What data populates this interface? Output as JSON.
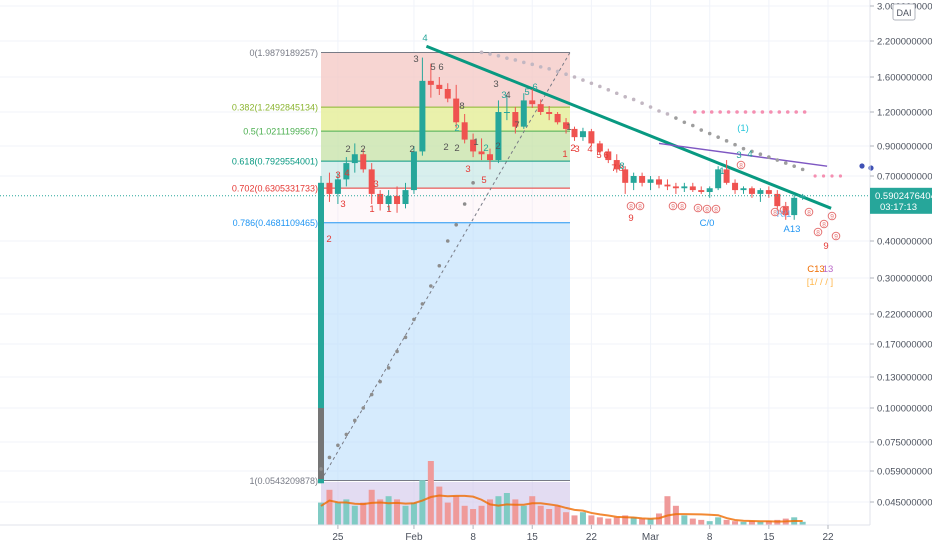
{
  "chart_data": {
    "type": "candlestick",
    "y_scale": "log",
    "currency_badge": "DAI",
    "current_price": "0.5902476404",
    "countdown": "03:17:13",
    "y_ticks": [
      {
        "label": "3.0000000000",
        "value": 3.0
      },
      {
        "label": "2.2000000000",
        "value": 2.2
      },
      {
        "label": "1.6000000000",
        "value": 1.6
      },
      {
        "label": "1.2000000000",
        "value": 1.2
      },
      {
        "label": "0.9000000000",
        "value": 0.9
      },
      {
        "label": "0.7000000000",
        "value": 0.7
      },
      {
        "label": "0.4000000000",
        "value": 0.4
      },
      {
        "label": "0.3000000000",
        "value": 0.3
      },
      {
        "label": "0.2200000000",
        "value": 0.22
      },
      {
        "label": "0.1700000000",
        "value": 0.17
      },
      {
        "label": "0.1300000000",
        "value": 0.13
      },
      {
        "label": "0.1000000000",
        "value": 0.1
      },
      {
        "label": "0.0750000000",
        "value": 0.075
      },
      {
        "label": "0.0590000000",
        "value": 0.059
      },
      {
        "label": "0.0450000000",
        "value": 0.045
      }
    ],
    "x_ticks": [
      "25",
      "Feb",
      "8",
      "15",
      "22",
      "Mar",
      "8",
      "15",
      "22"
    ],
    "fib_levels": [
      {
        "label": "0(1.9879189257)",
        "value": 1.9879189257,
        "color": "#787b86"
      },
      {
        "label": "0.382(1.2492845134)",
        "value": 1.2492845134,
        "color": "#8bb531"
      },
      {
        "label": "0.5(1.0211199567)",
        "value": 1.0211199567,
        "color": "#4caf50"
      },
      {
        "label": "0.618(0.7929554001)",
        "value": 0.7929554001,
        "color": "#089981"
      },
      {
        "label": "0.702(0.6305331733)",
        "value": 0.6305331733,
        "color": "#e53935"
      },
      {
        "label": "0.786(0.4681109465)",
        "value": 0.4681109465,
        "color": "#2196f3"
      },
      {
        "label": "1(0.0543209878)",
        "value": 0.0543209878,
        "color": "#787b86"
      }
    ],
    "td_labels": [
      {
        "t": "4",
        "color": "#26a69a"
      },
      {
        "t": "3",
        "color": "#555555"
      },
      {
        "t": "5",
        "color": "#555555"
      },
      {
        "t": "6",
        "color": "#555555"
      },
      {
        "t": "8",
        "color": "#555555"
      },
      {
        "t": "3",
        "color": "#555555"
      },
      {
        "t": "4",
        "color": "#555555"
      },
      {
        "t": "2",
        "color": "#555555"
      },
      {
        "t": "2",
        "color": "#555555"
      },
      {
        "t": "1",
        "color": "#555555"
      },
      {
        "t": "2",
        "color": "#555555"
      },
      {
        "t": "2",
        "color": "#555555"
      },
      {
        "t": "7",
        "color": "#555555"
      },
      {
        "t": "2",
        "color": "#e53935"
      },
      {
        "t": "3",
        "color": "#e53935"
      },
      {
        "t": "4",
        "color": "#e53935"
      },
      {
        "t": "5",
        "color": "#e53935"
      },
      {
        "t": "1",
        "color": "#e53935"
      },
      {
        "t": "1",
        "color": "#e53935"
      },
      {
        "t": "3",
        "color": "#e53935"
      },
      {
        "t": "3",
        "color": "#e53935"
      },
      {
        "t": "3",
        "color": "#e53935"
      },
      {
        "t": "4",
        "color": "#e53935"
      },
      {
        "t": "5",
        "color": "#e53935"
      },
      {
        "t": "6",
        "color": "#e53935"
      },
      {
        "t": "7",
        "color": "#e53935"
      },
      {
        "t": "8",
        "color": "#e53935"
      },
      {
        "t": "9",
        "color": "#e53935"
      },
      {
        "t": "1",
        "color": "#26a69a"
      },
      {
        "t": "3",
        "color": "#26a69a"
      },
      {
        "t": "4",
        "color": "#26a69a"
      },
      {
        "t": "(1)",
        "color": "#26c6da"
      },
      {
        "t": "9",
        "color": "#e53935"
      },
      {
        "t": "C/0",
        "color": "#2196f3"
      },
      {
        "t": "A13",
        "color": "#2196f3"
      },
      {
        "t": "R/1",
        "color": "#64b5f6"
      },
      {
        "t": "C13",
        "color": "#ef6c00"
      },
      {
        "t": "13",
        "color": "#ba68c8"
      },
      {
        "t": "[1/ / / ]",
        "color": "#ffb74d"
      },
      {
        "t": "1",
        "color": "#555555"
      },
      {
        "t": "2",
        "color": "#555555"
      },
      {
        "t": "2",
        "color": "#555555"
      },
      {
        "t": "1",
        "color": "#e53935"
      },
      {
        "t": "2",
        "color": "#e53935"
      },
      {
        "t": "3",
        "color": "#e53935"
      },
      {
        "t": "3",
        "color": "#26a69a"
      },
      {
        "t": "5",
        "color": "#26a69a"
      },
      {
        "t": "6",
        "color": "#26a69a"
      },
      {
        "t": "2",
        "color": "#26a69a"
      },
      {
        "t": "2",
        "color": "#26a69a"
      },
      {
        "t": "8",
        "color": "#26a69a"
      }
    ],
    "circle_markers": [
      "8",
      "8",
      "9",
      "8",
      "8",
      "8",
      "8",
      "8",
      "8",
      "8",
      "8",
      "9",
      "8",
      "9",
      "8"
    ],
    "candles": [
      {
        "o": 0.053,
        "h": 0.7,
        "l": 0.053,
        "c": 0.66
      },
      {
        "o": 0.66,
        "h": 0.72,
        "l": 0.56,
        "c": 0.6
      },
      {
        "o": 0.6,
        "h": 0.72,
        "l": 0.55,
        "c": 0.68
      },
      {
        "o": 0.68,
        "h": 0.82,
        "l": 0.64,
        "c": 0.78
      },
      {
        "o": 0.78,
        "h": 0.92,
        "l": 0.72,
        "c": 0.84
      },
      {
        "o": 0.84,
        "h": 0.88,
        "l": 0.72,
        "c": 0.74
      },
      {
        "o": 0.74,
        "h": 0.78,
        "l": 0.55,
        "c": 0.6
      },
      {
        "o": 0.6,
        "h": 0.62,
        "l": 0.52,
        "c": 0.55
      },
      {
        "o": 0.55,
        "h": 0.62,
        "l": 0.52,
        "c": 0.59
      },
      {
        "o": 0.59,
        "h": 0.64,
        "l": 0.51,
        "c": 0.55
      },
      {
        "o": 0.55,
        "h": 0.66,
        "l": 0.53,
        "c": 0.62
      },
      {
        "o": 0.62,
        "h": 0.9,
        "l": 0.6,
        "c": 0.86
      },
      {
        "o": 0.86,
        "h": 1.9,
        "l": 0.83,
        "c": 1.55
      },
      {
        "o": 1.55,
        "h": 1.8,
        "l": 1.35,
        "c": 1.5
      },
      {
        "o": 1.5,
        "h": 1.6,
        "l": 1.38,
        "c": 1.45
      },
      {
        "o": 1.45,
        "h": 1.52,
        "l": 1.3,
        "c": 1.34
      },
      {
        "o": 1.34,
        "h": 1.5,
        "l": 1.05,
        "c": 1.1
      },
      {
        "o": 1.1,
        "h": 1.18,
        "l": 0.92,
        "c": 0.95
      },
      {
        "o": 0.95,
        "h": 1.0,
        "l": 0.82,
        "c": 0.86
      },
      {
        "o": 0.86,
        "h": 0.96,
        "l": 0.8,
        "c": 0.84
      },
      {
        "o": 0.84,
        "h": 0.88,
        "l": 0.74,
        "c": 0.8
      },
      {
        "o": 0.8,
        "h": 1.32,
        "l": 0.78,
        "c": 1.2
      },
      {
        "o": 1.2,
        "h": 1.38,
        "l": 1.12,
        "c": 1.2
      },
      {
        "o": 1.2,
        "h": 1.25,
        "l": 1.0,
        "c": 1.06
      },
      {
        "o": 1.06,
        "h": 1.4,
        "l": 1.04,
        "c": 1.32
      },
      {
        "o": 1.32,
        "h": 1.45,
        "l": 1.24,
        "c": 1.28
      },
      {
        "o": 1.28,
        "h": 1.33,
        "l": 1.17,
        "c": 1.2
      },
      {
        "o": 1.2,
        "h": 1.26,
        "l": 1.12,
        "c": 1.18
      },
      {
        "o": 1.18,
        "h": 1.2,
        "l": 1.08,
        "c": 1.1
      },
      {
        "o": 1.1,
        "h": 1.14,
        "l": 1.0,
        "c": 1.04
      },
      {
        "o": 1.04,
        "h": 1.06,
        "l": 0.94,
        "c": 0.97
      },
      {
        "o": 0.97,
        "h": 1.05,
        "l": 0.94,
        "c": 1.02
      },
      {
        "o": 1.02,
        "h": 1.04,
        "l": 0.9,
        "c": 0.92
      },
      {
        "o": 0.92,
        "h": 0.94,
        "l": 0.84,
        "c": 0.86
      },
      {
        "o": 0.86,
        "h": 0.88,
        "l": 0.78,
        "c": 0.8
      },
      {
        "o": 0.8,
        "h": 0.84,
        "l": 0.72,
        "c": 0.74
      },
      {
        "o": 0.74,
        "h": 0.76,
        "l": 0.6,
        "c": 0.66
      },
      {
        "o": 0.66,
        "h": 0.72,
        "l": 0.62,
        "c": 0.7
      },
      {
        "o": 0.7,
        "h": 0.72,
        "l": 0.64,
        "c": 0.66
      },
      {
        "o": 0.66,
        "h": 0.7,
        "l": 0.62,
        "c": 0.68
      },
      {
        "o": 0.68,
        "h": 0.7,
        "l": 0.63,
        "c": 0.65
      },
      {
        "o": 0.65,
        "h": 0.68,
        "l": 0.62,
        "c": 0.64
      },
      {
        "o": 0.64,
        "h": 0.66,
        "l": 0.6,
        "c": 0.63
      },
      {
        "o": 0.63,
        "h": 0.66,
        "l": 0.61,
        "c": 0.64
      },
      {
        "o": 0.64,
        "h": 0.66,
        "l": 0.61,
        "c": 0.62
      },
      {
        "o": 0.62,
        "h": 0.64,
        "l": 0.6,
        "c": 0.61
      },
      {
        "o": 0.61,
        "h": 0.64,
        "l": 0.58,
        "c": 0.63
      },
      {
        "o": 0.63,
        "h": 0.76,
        "l": 0.62,
        "c": 0.74
      },
      {
        "o": 0.74,
        "h": 0.8,
        "l": 0.65,
        "c": 0.66
      },
      {
        "o": 0.66,
        "h": 0.68,
        "l": 0.6,
        "c": 0.62
      },
      {
        "o": 0.62,
        "h": 0.64,
        "l": 0.6,
        "c": 0.63
      },
      {
        "o": 0.63,
        "h": 0.64,
        "l": 0.58,
        "c": 0.6
      },
      {
        "o": 0.6,
        "h": 0.63,
        "l": 0.56,
        "c": 0.62
      },
      {
        "o": 0.62,
        "h": 0.64,
        "l": 0.58,
        "c": 0.6
      },
      {
        "o": 0.6,
        "h": 0.62,
        "l": 0.52,
        "c": 0.54
      },
      {
        "o": 0.54,
        "h": 0.56,
        "l": 0.48,
        "c": 0.5
      },
      {
        "o": 0.5,
        "h": 0.6,
        "l": 0.48,
        "c": 0.58
      },
      {
        "o": 0.58,
        "h": 0.6,
        "l": 0.57,
        "c": 0.59
      }
    ],
    "volumes": [
      0.35,
      0.55,
      0.35,
      0.4,
      0.3,
      0.35,
      0.55,
      0.4,
      0.45,
      0.4,
      0.3,
      0.35,
      0.7,
      1.0,
      0.6,
      0.35,
      0.45,
      0.3,
      0.25,
      0.3,
      0.4,
      0.45,
      0.5,
      0.4,
      0.3,
      0.45,
      0.3,
      0.25,
      0.3,
      0.2,
      0.15,
      0.2,
      0.15,
      0.12,
      0.1,
      0.12,
      0.15,
      0.12,
      0.1,
      0.1,
      0.18,
      0.45,
      0.3,
      0.15,
      0.1,
      0.08,
      0.06,
      0.12,
      0.08,
      0.06,
      0.05,
      0.06,
      0.05,
      0.06,
      0.08,
      0.1,
      0.12,
      0.05
    ],
    "sar_dots": [
      0.06,
      0.066,
      0.073,
      0.08,
      0.09,
      0.1,
      0.112,
      0.125,
      0.14,
      0.16,
      0.18,
      0.21,
      0.24,
      0.28,
      0.33,
      0.4,
      0.46,
      0.55,
      0.66,
      1.99,
      1.96,
      1.93,
      1.89,
      1.86,
      1.82,
      1.79,
      1.75,
      1.72,
      1.68,
      1.64,
      1.6,
      1.56,
      1.52,
      1.48,
      1.44,
      1.4,
      1.36,
      1.33,
      1.29,
      1.25,
      1.21,
      1.18,
      1.14,
      1.1,
      1.07,
      1.03,
      1.0,
      0.97,
      0.94,
      0.91,
      0.88,
      0.86,
      0.84,
      0.82,
      0.8,
      0.78,
      0.76,
      0.74
    ],
    "sar_red_level": 1.2,
    "trendline": {
      "from": {
        "i": 12,
        "v": 2.1
      },
      "to": {
        "i": 58,
        "v": 0.53
      }
    },
    "purple_line": {
      "from": {
        "i": 40,
        "v": 0.92
      },
      "to": {
        "i": 58,
        "v": 0.76
      }
    }
  }
}
